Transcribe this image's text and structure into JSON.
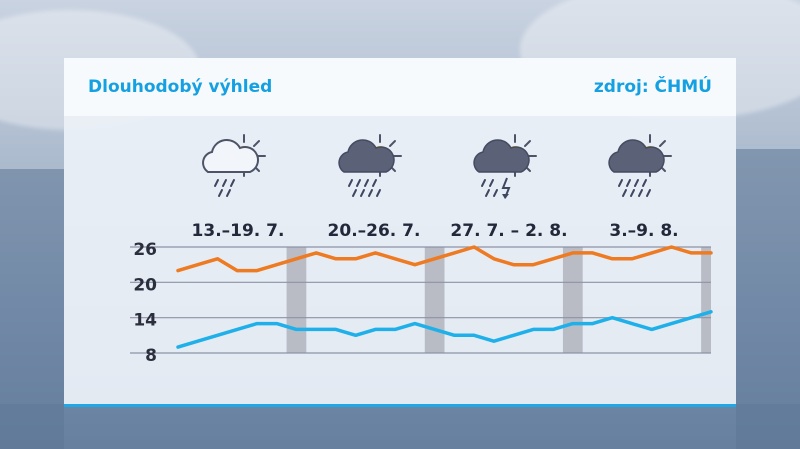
{
  "header": {
    "title": "Dlouhodobý výhled",
    "source": "zdroj: ČHMÚ"
  },
  "weeks": [
    {
      "label": "13.–19. 7.",
      "icon": "partly-cloudy-rain-icon"
    },
    {
      "label": "20.–26. 7.",
      "icon": "cloud-heavy-rain-sun-icon"
    },
    {
      "label": "27. 7. – 2. 8.",
      "icon": "thunderstorm-rain-sun-icon"
    },
    {
      "label": "3.–9. 8.",
      "icon": "cloud-heavy-rain-sun-icon"
    }
  ],
  "colors": {
    "max_line": "#ee7a22",
    "min_line": "#1fb0ea",
    "weekend_band": "#a9acb6",
    "grid": "#8c93a6",
    "title": "#15a0e2"
  },
  "chart_data": {
    "type": "line",
    "x": [
      13,
      14,
      15,
      16,
      17,
      18,
      19,
      20,
      21,
      22,
      23,
      24,
      25,
      26,
      27,
      28,
      29,
      30,
      31,
      1,
      2,
      3,
      4,
      5,
      6,
      7,
      8,
      9
    ],
    "ylim": [
      8,
      26
    ],
    "yticks": [
      8,
      14,
      20,
      26
    ],
    "weekend_bands": [
      [
        18,
        19
      ],
      [
        25,
        26
      ],
      [
        1,
        2
      ],
      [
        8,
        9
      ]
    ],
    "series": [
      {
        "key": "max",
        "values": [
          22,
          23,
          24,
          22,
          22,
          23,
          24,
          25,
          24,
          24,
          25,
          24,
          23,
          24,
          25,
          26,
          24,
          23,
          23,
          24,
          25,
          25,
          24,
          24,
          25,
          26,
          25,
          25
        ]
      },
      {
        "key": "min",
        "values": [
          9,
          10,
          11,
          12,
          13,
          13,
          12,
          12,
          12,
          11,
          12,
          12,
          13,
          12,
          11,
          11,
          10,
          11,
          12,
          12,
          13,
          13,
          14,
          13,
          12,
          13,
          14,
          15
        ]
      }
    ]
  }
}
